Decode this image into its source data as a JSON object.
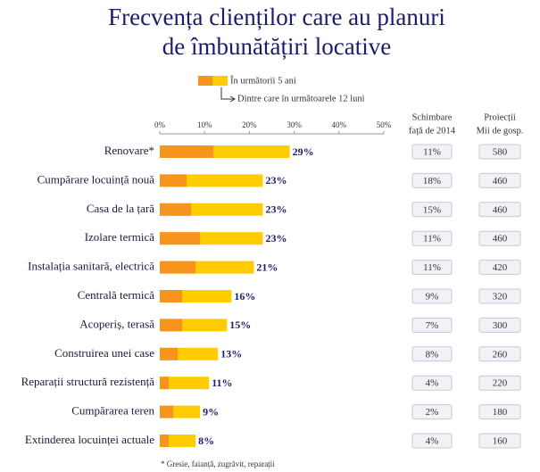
{
  "chart_data": {
    "type": "bar",
    "orientation": "horizontal",
    "title": [
      "Frecvența clienților care au planuri",
      "de îmbunătățiri locative"
    ],
    "categories": [
      "Renovare*",
      "Cumpărare locuință nouă",
      "Casa de la țară",
      "Izolare termică",
      "Instalația sanitară, electrică",
      "Centrală termică",
      "Acoperiș, terasă",
      "Construirea unei case",
      "Reparații structură rezistență",
      "Cumpărarea teren",
      "Extinderea locuinței actuale"
    ],
    "series": [
      {
        "name": "În următorii 5 ani",
        "color": "#ffcc00",
        "values": [
          29,
          23,
          23,
          23,
          21,
          16,
          15,
          13,
          11,
          9,
          8
        ],
        "value_labels": [
          "29%",
          "23%",
          "23%",
          "23%",
          "21%",
          "16%",
          "15%",
          "13%",
          "11%",
          "9%",
          "8%"
        ]
      },
      {
        "name": "Dintre care în următoarele 12 luni",
        "color": "#f7941d",
        "values": [
          12,
          6,
          7,
          9,
          8,
          5,
          5,
          4,
          2,
          3,
          2
        ]
      }
    ],
    "xlim": [
      0,
      50
    ],
    "xticks": [
      {
        "value": 0,
        "label": "0%"
      },
      {
        "value": 10,
        "label": "10%"
      },
      {
        "value": 20,
        "label": "20%"
      },
      {
        "value": 30,
        "label": "30%"
      },
      {
        "value": 40,
        "label": "40%"
      },
      {
        "value": 50,
        "label": "50%"
      }
    ],
    "columns": [
      {
        "header": [
          "Schimbare",
          "față de 2014"
        ],
        "cells": [
          "11%",
          "18%",
          "15%",
          "11%",
          "11%",
          "9%",
          "7%",
          "8%",
          "4%",
          "2%",
          "4%"
        ]
      },
      {
        "header": [
          "Proiecții",
          "Mii de gosp."
        ],
        "cells": [
          580,
          460,
          460,
          460,
          420,
          320,
          300,
          260,
          220,
          180,
          160
        ]
      }
    ],
    "footnote": "* Gresie, faianță, zugrăvit, reparații"
  }
}
